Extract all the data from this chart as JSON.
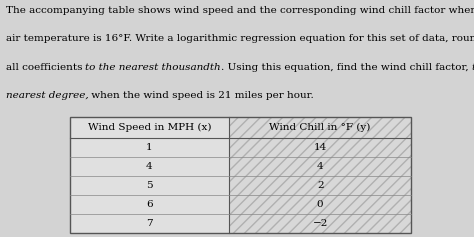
{
  "paragraph": [
    {
      "text": "The accompanying table shows wind speed and the corresponding wind chill factor when the",
      "italic_phrases": []
    },
    {
      "text": "air temperature is 16°F. Write a logarithmic regression equation for this set of data, rounding",
      "italic_phrases": []
    },
    {
      "text": "all coefficients to the nearest thousandth. Using this equation, find the wind chill factor, to the",
      "italic_phrases": [
        "to the nearest thousandth",
        "to the"
      ]
    },
    {
      "text": "nearest degree, when the wind speed is 21 miles per hour.",
      "italic_phrases": [
        "nearest degree,"
      ]
    }
  ],
  "line3_segments": [
    [
      "all coefficients ",
      false
    ],
    [
      "to the nearest thousandth",
      true
    ],
    [
      ". Using this equation, find the wind chill factor, ",
      false
    ],
    [
      "to the",
      true
    ]
  ],
  "line4_segments": [
    [
      "nearest degree,",
      true
    ],
    [
      " when the wind speed is 21 miles per hour.",
      false
    ]
  ],
  "col_headers": [
    "Wind Speed in MPH (x)",
    "Wind Chill in °F (y)"
  ],
  "rows": [
    [
      "1",
      "14"
    ],
    [
      "4",
      "4"
    ],
    [
      "5",
      "2"
    ],
    [
      "6",
      "0"
    ],
    [
      "7",
      "−2"
    ]
  ],
  "fig_bg": "#d3d3d3",
  "table_left_bg": "#e8e8e8",
  "table_right_bg": "#d0d0d0",
  "font_size_text": 7.5,
  "font_size_table": 7.5
}
